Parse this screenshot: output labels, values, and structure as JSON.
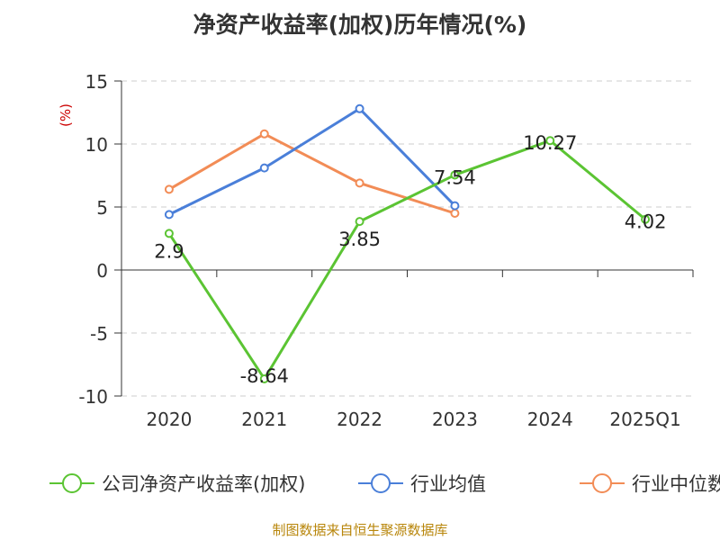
{
  "chart_data": {
    "type": "line",
    "title": "净资产收益率(加权)历年情况(%)",
    "ylabel": "(%)",
    "categories": [
      "2020",
      "2021",
      "2022",
      "2023",
      "2024",
      "2025Q1"
    ],
    "y_ticks": [
      "15",
      "10",
      "5",
      "0",
      "-5",
      "-10"
    ],
    "ylim": [
      -10,
      15
    ],
    "grid": true,
    "legend_position": "bottom",
    "series": [
      {
        "name": "公司净资产收益率(加权)",
        "color": "#5bc433",
        "values": [
          2.9,
          -8.64,
          3.85,
          7.54,
          10.27,
          4.02
        ],
        "labels": [
          "2.9",
          "-8.64",
          "3.85",
          "7.54",
          "10.27",
          "4.02"
        ]
      },
      {
        "name": "行业均值",
        "color": "#4a7fd9",
        "values": [
          4.4,
          8.1,
          12.8,
          5.1,
          null,
          null
        ]
      },
      {
        "name": "行业中位数",
        "color": "#f28c56",
        "values": [
          6.4,
          10.8,
          6.9,
          4.5,
          null,
          null
        ]
      }
    ]
  },
  "source": "制图数据来自恒生聚源数据库"
}
